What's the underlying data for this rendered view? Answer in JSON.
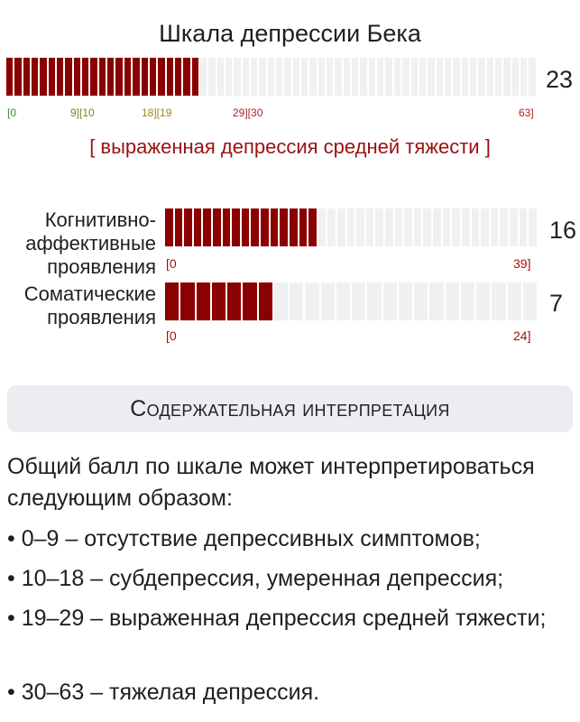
{
  "title": "Шкала депрессии Бека",
  "main_scale": {
    "value": "23",
    "max": 63,
    "score": 23,
    "ticks": [
      "[0",
      "9][10",
      "18][19",
      "29][30",
      "63]"
    ],
    "tick_colors": [
      "#2e8b2e",
      "#6a8f1e",
      "#9a8a1a",
      "#b02020",
      "#b02020"
    ],
    "verdict": "[ выраженная депрессия средней тяжести ]"
  },
  "subscales": [
    {
      "label": "Когнитивно-\nаффективные\nпроявления",
      "value": "16",
      "score": 16,
      "max": 39,
      "range_min": "[0",
      "range_max": "39]"
    },
    {
      "label": "Соматические\nпроявления",
      "value": "7",
      "score": 7,
      "max": 24,
      "range_min": "[0",
      "range_max": "24]"
    }
  ],
  "section": {
    "title": "Содержательная интерпретация"
  },
  "interpretation": {
    "intro": "Общий балл по шкале может интерпретироваться следующим образом:",
    "items": [
      "• 0–9 – отсутствие депрессивных симптомов;",
      "• 10–18 – субдепрессия, умеренная депрессия;",
      "• 19–29 – выраженная депрессия средней тяжести;",
      "• 30–63 – тяжелая депрессия."
    ]
  },
  "colors": {
    "bar_fill": "#8b0000",
    "bar_empty": "#f0f0f0",
    "accent": "#9b1010"
  }
}
